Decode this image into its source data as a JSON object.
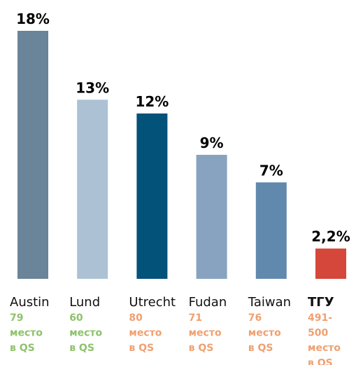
{
  "chart_data": {
    "type": "bar",
    "categories": [
      "Austin",
      "Lund",
      "Utrecht",
      "Fudan",
      "Taiwan",
      "ТГУ"
    ],
    "values": [
      18,
      13,
      12,
      9,
      7,
      2.2
    ],
    "value_labels": [
      "18%",
      "13%",
      "12%",
      "9%",
      "7%",
      "2,2%"
    ],
    "colors": [
      "#6a8499",
      "#adc1d4",
      "#03527a",
      "#87a3bf",
      "#6189ad",
      "#d4473a"
    ],
    "bold_categories": [
      5
    ],
    "annotations": [
      [
        "79",
        "место",
        "в QS"
      ],
      [
        "60",
        "место",
        "в QS"
      ],
      [
        "80",
        "место",
        "в QS"
      ],
      [
        "71",
        "место",
        "в QS"
      ],
      [
        "76",
        "место",
        "в QS"
      ],
      [
        "491-",
        "500",
        "место",
        "в QS"
      ]
    ],
    "annotation_colors": [
      "#8dc26b",
      "#8dc26b",
      "#f0a070",
      "#f0a070",
      "#f0a070",
      "#f0a070"
    ]
  }
}
